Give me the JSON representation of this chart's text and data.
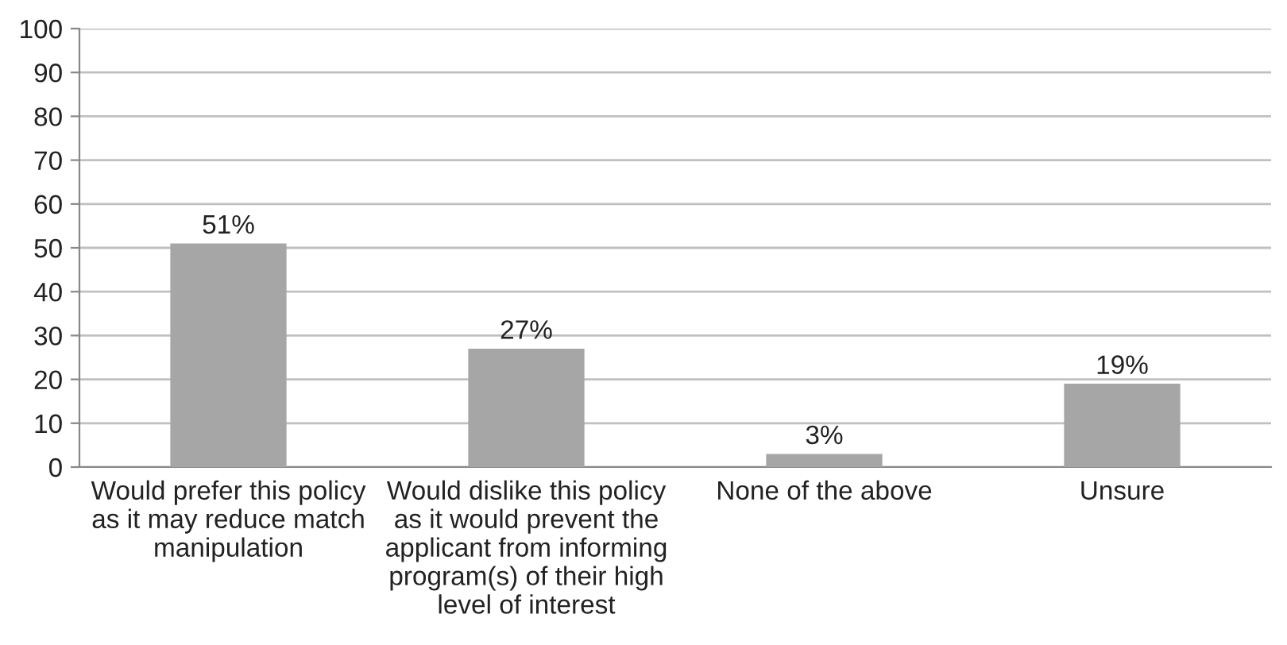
{
  "chart_data": {
    "type": "bar",
    "categories": [
      "Would prefer this policy\nas it may reduce match\nmanipulation",
      "Would dislike this policy\nas it would prevent the\napplicant from informing\nprogram(s) of their high\nlevel of interest",
      "None of the above",
      "Unsure"
    ],
    "values": [
      51,
      27,
      3,
      19
    ],
    "value_labels": [
      "51%",
      "27%",
      "3%",
      "19%"
    ],
    "color": "#a6a6a6",
    "ylim": [
      0,
      100
    ],
    "yticks": [
      0,
      10,
      20,
      30,
      40,
      50,
      60,
      70,
      80,
      90,
      100
    ],
    "grid": "y",
    "legend": false
  }
}
